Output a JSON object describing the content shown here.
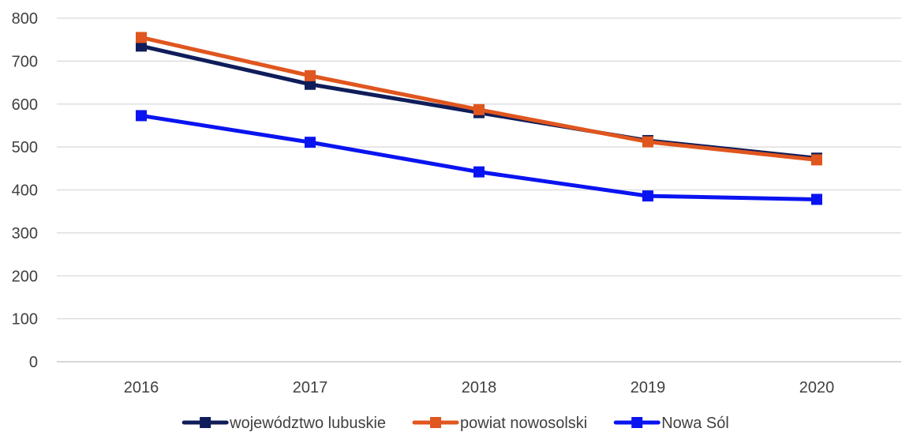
{
  "chart_data": {
    "type": "line",
    "title": "",
    "xlabel": "",
    "ylabel": "",
    "categories": [
      "2016",
      "2017",
      "2018",
      "2019",
      "2020"
    ],
    "ylim": [
      0,
      800
    ],
    "yticks": [
      0,
      100,
      200,
      300,
      400,
      500,
      600,
      700,
      800
    ],
    "ytick_labels": [
      "0",
      "100",
      "200",
      "300",
      "400",
      "500",
      "600",
      "700",
      "800"
    ],
    "grid": true,
    "legend_position": "bottom",
    "series": [
      {
        "name": "województwo lubuskie",
        "color": "#0f1d5a",
        "values": [
          735,
          646,
          580,
          515,
          474
        ]
      },
      {
        "name": "powiat nowosolski",
        "color": "#e0561f",
        "values": [
          755,
          666,
          587,
          512,
          470
        ]
      },
      {
        "name": "Nowa Sól",
        "color": "#0a14f0",
        "values": [
          573,
          511,
          442,
          386,
          378
        ]
      }
    ]
  }
}
